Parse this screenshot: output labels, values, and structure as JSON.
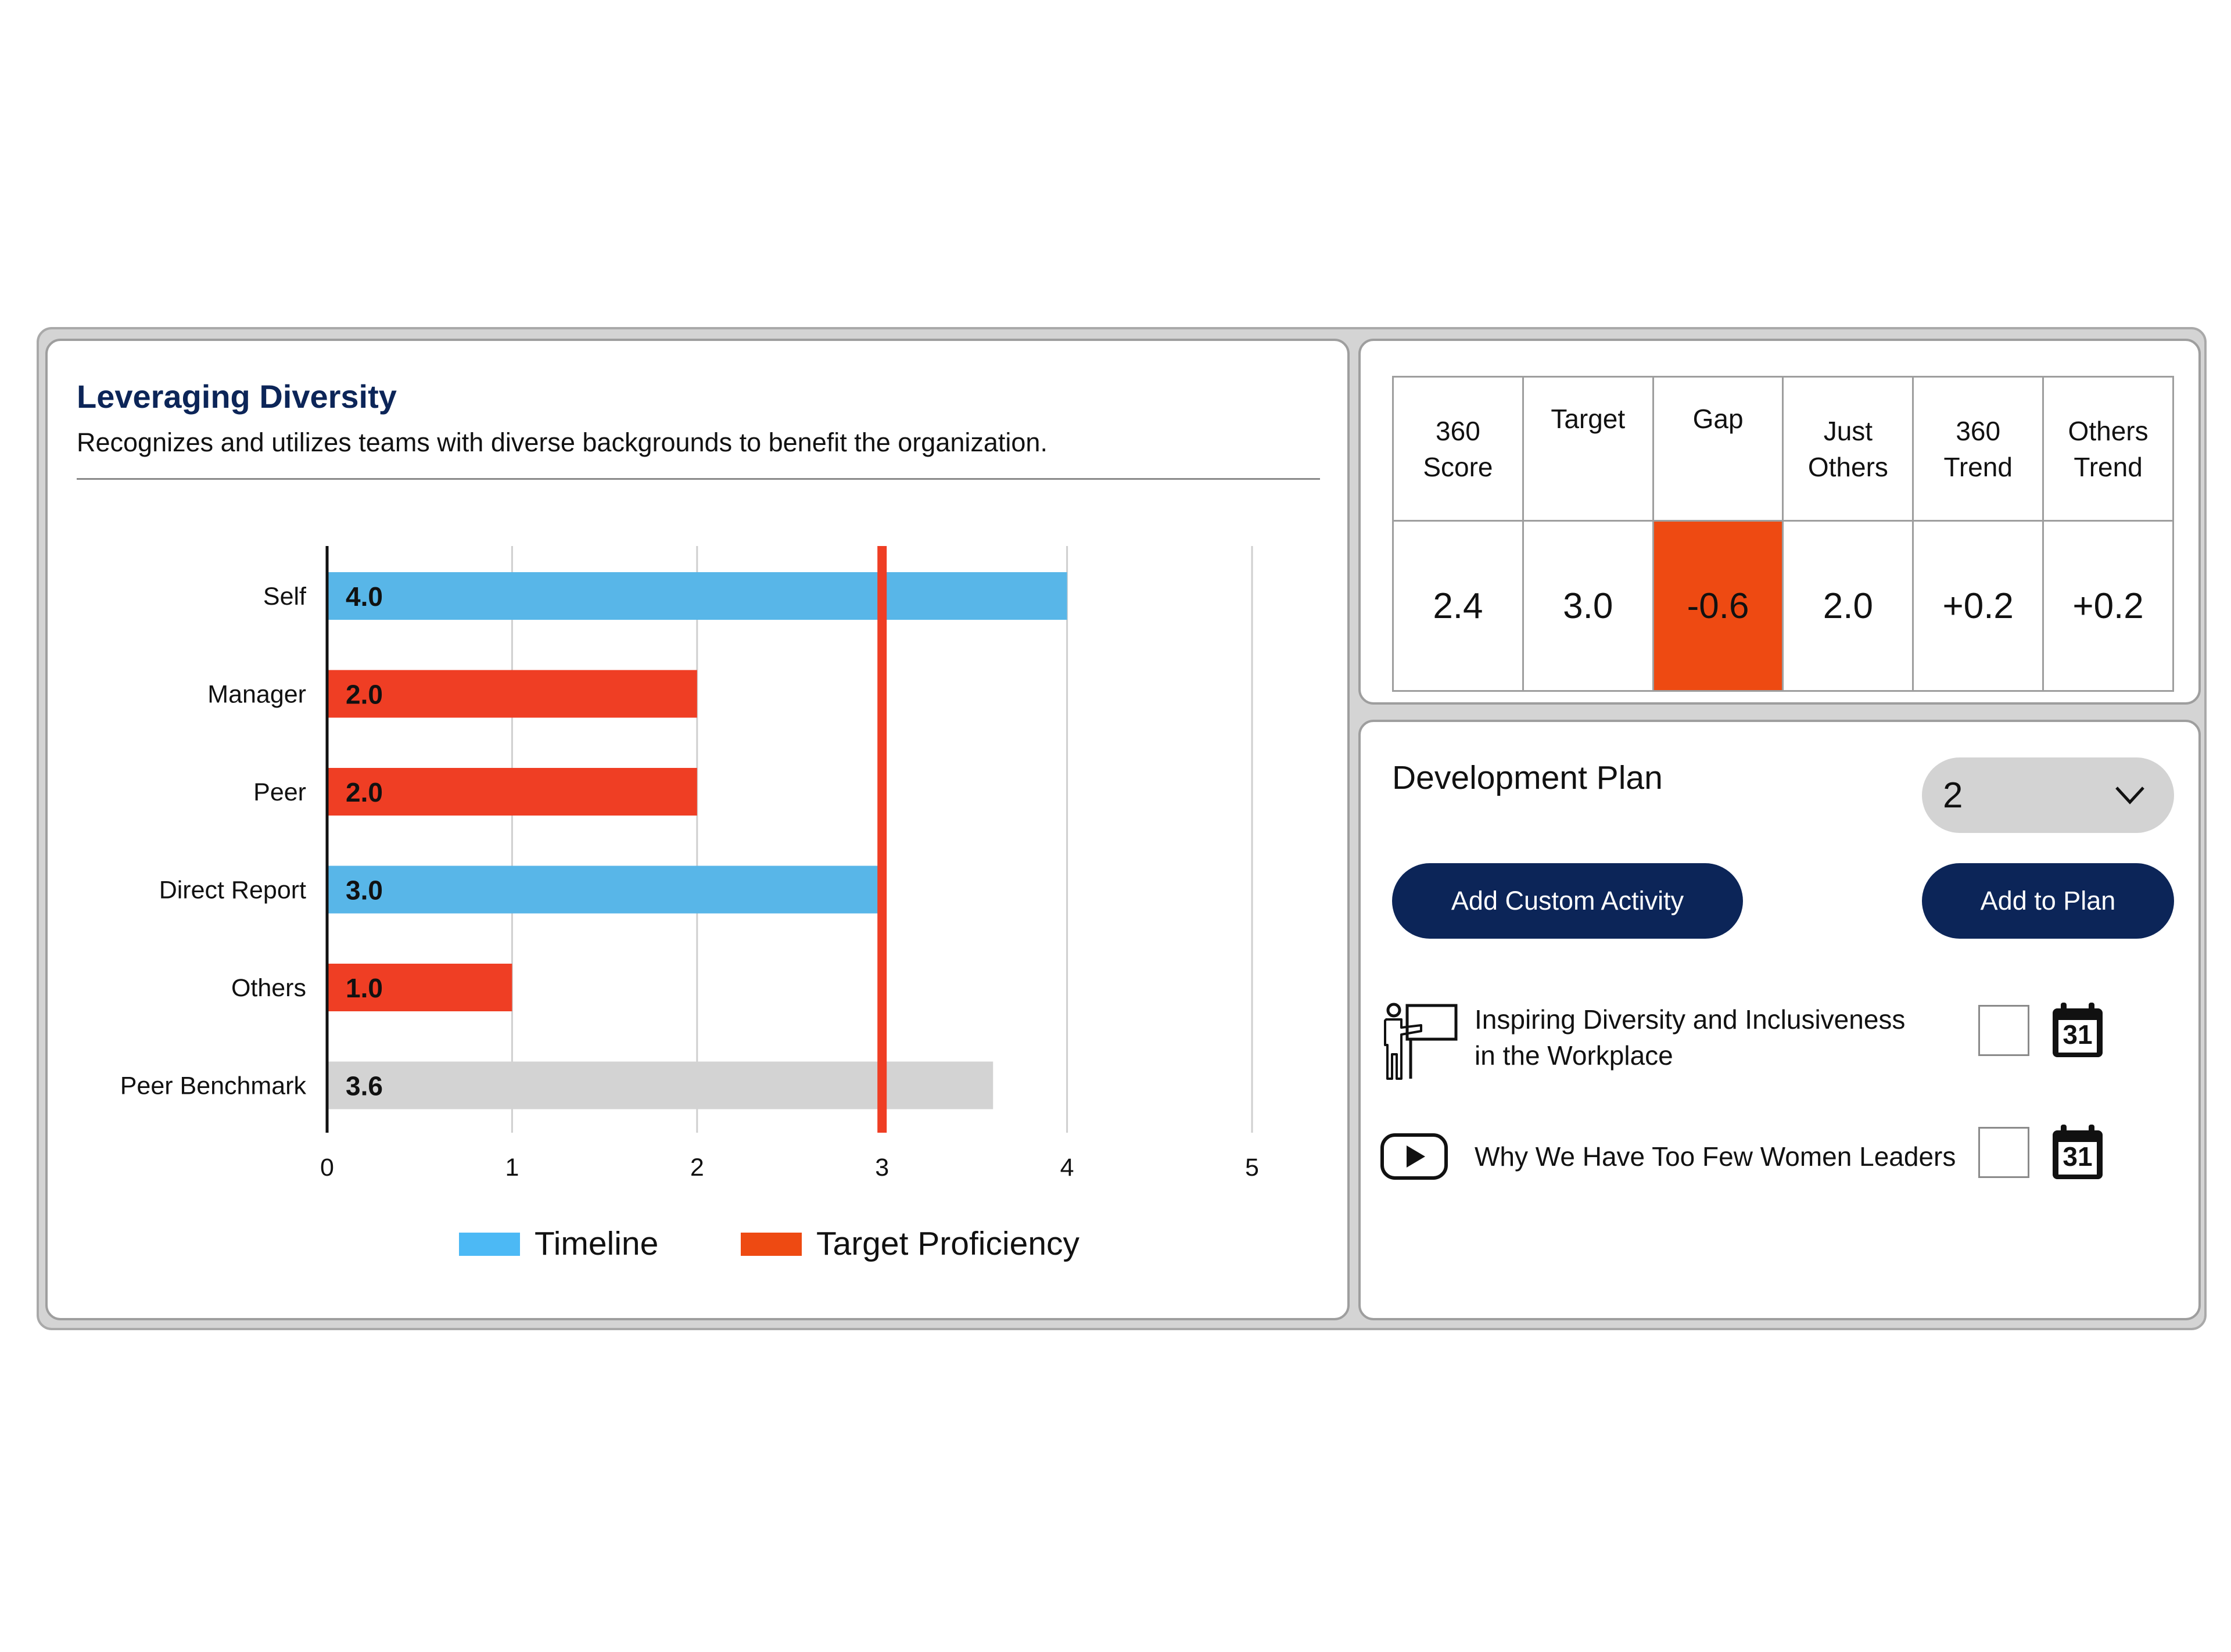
{
  "competency": {
    "title": "Leveraging Diversity",
    "description": "Recognizes and utilizes teams with diverse backgrounds to benefit the organization."
  },
  "chart_data": {
    "type": "bar",
    "orientation": "horizontal",
    "categories": [
      "Self",
      "Manager",
      "Peer",
      "Direct Report",
      "Others",
      "Peer Benchmark"
    ],
    "values": [
      4.0,
      2.0,
      2.0,
      3.0,
      1.0,
      3.6
    ],
    "value_labels": [
      "4.0",
      "2.0",
      "2.0",
      "3.0",
      "1.0",
      "3.6"
    ],
    "bar_colors": [
      "#58b6e8",
      "#ef3e24",
      "#ef3e24",
      "#58b6e8",
      "#ef3e24",
      "#d3d3d3"
    ],
    "target_line": 3,
    "xlim": [
      0,
      5
    ],
    "xticks": [
      "0",
      "1",
      "2",
      "3",
      "4",
      "5"
    ],
    "grid": true,
    "legend": [
      {
        "label": "Timeline",
        "color": "#4cb9f5"
      },
      {
        "label": "Target Proficiency",
        "color": "#ee4a12"
      }
    ],
    "target_color": "#ef3e24",
    "legend_position": "bottom-center"
  },
  "scores": {
    "headers": [
      {
        "l1": "360",
        "l2": "Score"
      },
      {
        "l1": "Target",
        "l2": ""
      },
      {
        "l1": "Gap",
        "l2": ""
      },
      {
        "l1": "Just",
        "l2": "Others"
      },
      {
        "l1": "360",
        "l2": "Trend"
      },
      {
        "l1": "Others",
        "l2": "Trend"
      }
    ],
    "values": [
      "2.4",
      "3.0",
      "-0.6",
      "2.0",
      "+0.2",
      "+0.2"
    ],
    "gap_color": "#ee4a12"
  },
  "plan": {
    "title": "Development Plan",
    "selected": "2",
    "add_custom_label": "Add Custom Activity",
    "add_to_plan_label": "Add to Plan",
    "activities": [
      {
        "line1": "Inspiring Diversity and Inclusiveness",
        "line2": "in the Workplace",
        "icon": "presenter-icon",
        "calendar_day": "31"
      },
      {
        "line1": "Why We Have Too Few Women Leaders",
        "line2": "",
        "icon": "video-play-icon",
        "calendar_day": "31"
      }
    ],
    "accent": "#0c2558"
  }
}
